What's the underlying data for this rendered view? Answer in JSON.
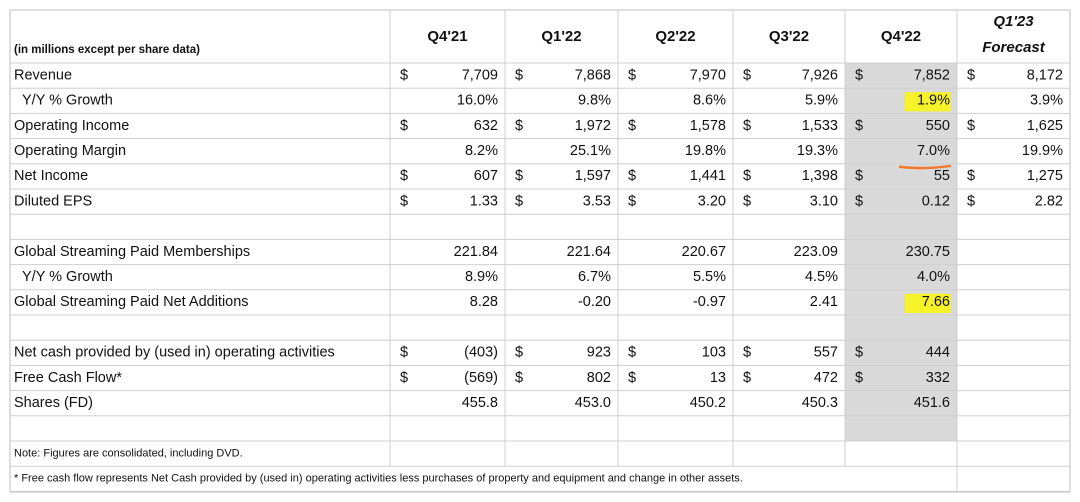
{
  "header": {
    "unit_note": "(in millions except per share data)",
    "columns": [
      "Q4'21",
      "Q1'22",
      "Q2'22",
      "Q3'22",
      "Q4'22",
      "Q1'23"
    ],
    "forecast_label": "Forecast"
  },
  "table": {
    "rows": [
      {
        "label": "Revenue",
        "cells": [
          {
            "c": "$",
            "v": "7,709"
          },
          {
            "c": "$",
            "v": "7,868"
          },
          {
            "c": "$",
            "v": "7,970"
          },
          {
            "c": "$",
            "v": "7,926"
          },
          {
            "c": "$",
            "v": "7,852"
          },
          {
            "c": "$",
            "v": "8,172"
          }
        ]
      },
      {
        "label": "Y/Y % Growth",
        "cells": [
          {
            "v": "16.0%"
          },
          {
            "v": "9.8%"
          },
          {
            "v": "8.6%"
          },
          {
            "v": "5.9%"
          },
          {
            "v": "1.9%"
          },
          {
            "v": "3.9%"
          }
        ]
      },
      {
        "label": "Operating Income",
        "cells": [
          {
            "c": "$",
            "v": "632"
          },
          {
            "c": "$",
            "v": "1,972"
          },
          {
            "c": "$",
            "v": "1,578"
          },
          {
            "c": "$",
            "v": "1,533"
          },
          {
            "c": "$",
            "v": "550"
          },
          {
            "c": "$",
            "v": "1,625"
          }
        ]
      },
      {
        "label": "Operating Margin",
        "cells": [
          {
            "v": "8.2%"
          },
          {
            "v": "25.1%"
          },
          {
            "v": "19.8%"
          },
          {
            "v": "19.3%"
          },
          {
            "v": "7.0%"
          },
          {
            "v": "19.9%"
          }
        ]
      },
      {
        "label": "Net Income",
        "cells": [
          {
            "c": "$",
            "v": "607"
          },
          {
            "c": "$",
            "v": "1,597"
          },
          {
            "c": "$",
            "v": "1,441"
          },
          {
            "c": "$",
            "v": "1,398"
          },
          {
            "c": "$",
            "v": "55"
          },
          {
            "c": "$",
            "v": "1,275"
          }
        ]
      },
      {
        "label": "Diluted EPS",
        "cells": [
          {
            "c": "$",
            "v": "1.33"
          },
          {
            "c": "$",
            "v": "3.53"
          },
          {
            "c": "$",
            "v": "3.20"
          },
          {
            "c": "$",
            "v": "3.10"
          },
          {
            "c": "$",
            "v": "0.12"
          },
          {
            "c": "$",
            "v": "2.82"
          }
        ]
      },
      null,
      {
        "label": "Global Streaming Paid Memberships",
        "cells": [
          {
            "v": "221.84"
          },
          {
            "v": "221.64"
          },
          {
            "v": "220.67"
          },
          {
            "v": "223.09"
          },
          {
            "v": "230.75"
          },
          null
        ]
      },
      {
        "label": "Y/Y % Growth",
        "cells": [
          {
            "v": "8.9%"
          },
          {
            "v": "6.7%"
          },
          {
            "v": "5.5%"
          },
          {
            "v": "4.5%"
          },
          {
            "v": "4.0%"
          },
          null
        ]
      },
      {
        "label": "Global Streaming Paid Net Additions",
        "cells": [
          {
            "v": "8.28"
          },
          {
            "v": "-0.20"
          },
          {
            "v": "-0.97"
          },
          {
            "v": "2.41"
          },
          {
            "v": "7.66"
          },
          null
        ]
      },
      null,
      {
        "label": "Net cash provided by (used in) operating activities",
        "cells": [
          {
            "c": "$",
            "v": "(403)"
          },
          {
            "c": "$",
            "v": "923"
          },
          {
            "c": "$",
            "v": "103"
          },
          {
            "c": "$",
            "v": "557"
          },
          {
            "c": "$",
            "v": "444"
          },
          null
        ]
      },
      {
        "label": "Free Cash Flow*",
        "cells": [
          {
            "c": "$",
            "v": "(569)"
          },
          {
            "c": "$",
            "v": "802"
          },
          {
            "c": "$",
            "v": "13"
          },
          {
            "c": "$",
            "v": "472"
          },
          {
            "c": "$",
            "v": "332"
          },
          null
        ]
      },
      {
        "label": "Shares (FD)",
        "cells": [
          {
            "v": "455.8"
          },
          {
            "v": "453.0"
          },
          {
            "v": "450.2"
          },
          {
            "v": "450.3"
          },
          {
            "v": "451.6"
          },
          null
        ]
      },
      null
    ]
  },
  "notes": [
    "Note: Figures are consolidated, including DVD.",
    "* Free cash flow represents Net Cash provided by (used in) operating activities less purchases of property and equipment and change in other assets."
  ]
}
